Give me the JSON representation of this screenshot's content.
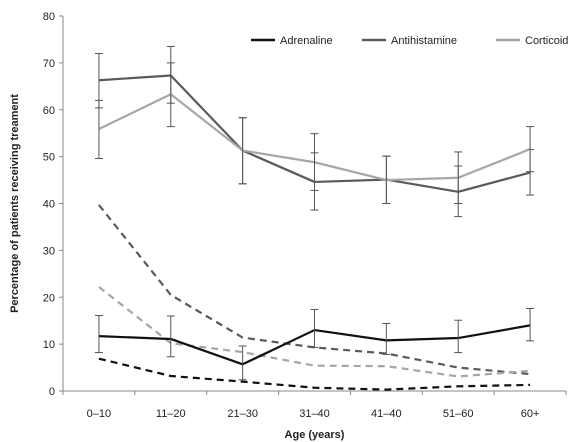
{
  "chart_data": {
    "type": "line",
    "xlabel": "Age (years)",
    "ylabel": "Percentage of patients receiving treament",
    "ylim": [
      0,
      80
    ],
    "yticks": [
      0,
      10,
      20,
      30,
      40,
      50,
      60,
      70,
      80
    ],
    "categories": [
      "0–10",
      "11–20",
      "21–30",
      "31–40",
      "41–40",
      "51–60",
      "60+"
    ],
    "grid": false,
    "legend_position": "top-right",
    "legend": [
      {
        "label": "Adrenaline",
        "color": "#111111"
      },
      {
        "label": "Antihistamine",
        "color": "#5a5a5a"
      },
      {
        "label": "Corticoid",
        "color": "#a6a6a6"
      }
    ],
    "series": [
      {
        "name": "Adrenaline",
        "style": "solid",
        "color": "#111111",
        "values": [
          11.7,
          11.1,
          5.7,
          13.0,
          10.8,
          11.3,
          14.0
        ],
        "error_low": [
          8.2,
          7.3,
          2.4,
          9.3,
          7.8,
          8.2,
          10.7
        ],
        "error_high": [
          16.1,
          16.0,
          9.6,
          17.4,
          14.4,
          15.1,
          17.6
        ]
      },
      {
        "name": "Antihistamine",
        "style": "solid",
        "color": "#5a5a5a",
        "values": [
          66.3,
          67.3,
          51.3,
          44.6,
          45.1,
          42.5,
          46.6
        ],
        "error_low": [
          60.4,
          61.4,
          44.2,
          38.6,
          40.0,
          37.2,
          41.8
        ],
        "error_high": [
          72.0,
          73.5,
          58.3,
          50.8,
          50.1,
          48.0,
          51.5
        ]
      },
      {
        "name": "Corticoid",
        "style": "solid",
        "color": "#a6a6a6",
        "values": [
          55.9,
          63.3,
          51.3,
          48.8,
          45.0,
          45.5,
          51.6
        ],
        "error_low": [
          49.6,
          56.4,
          44.2,
          42.8,
          40.0,
          40.0,
          46.8
        ],
        "error_high": [
          62.0,
          70.0,
          58.3,
          54.9,
          50.1,
          51.0,
          56.4
        ]
      },
      {
        "style": "dashed",
        "color": "#111111",
        "values": [
          6.9,
          3.2,
          2.0,
          0.7,
          0.3,
          1.0,
          1.3
        ]
      },
      {
        "style": "dashed",
        "color": "#5a5a5a",
        "values": [
          39.7,
          20.5,
          11.4,
          9.3,
          8.0,
          5.0,
          3.6
        ]
      },
      {
        "style": "dashed",
        "color": "#a6a6a6",
        "values": [
          22.2,
          10.2,
          8.3,
          5.4,
          5.3,
          3.1,
          4.3
        ]
      }
    ]
  }
}
